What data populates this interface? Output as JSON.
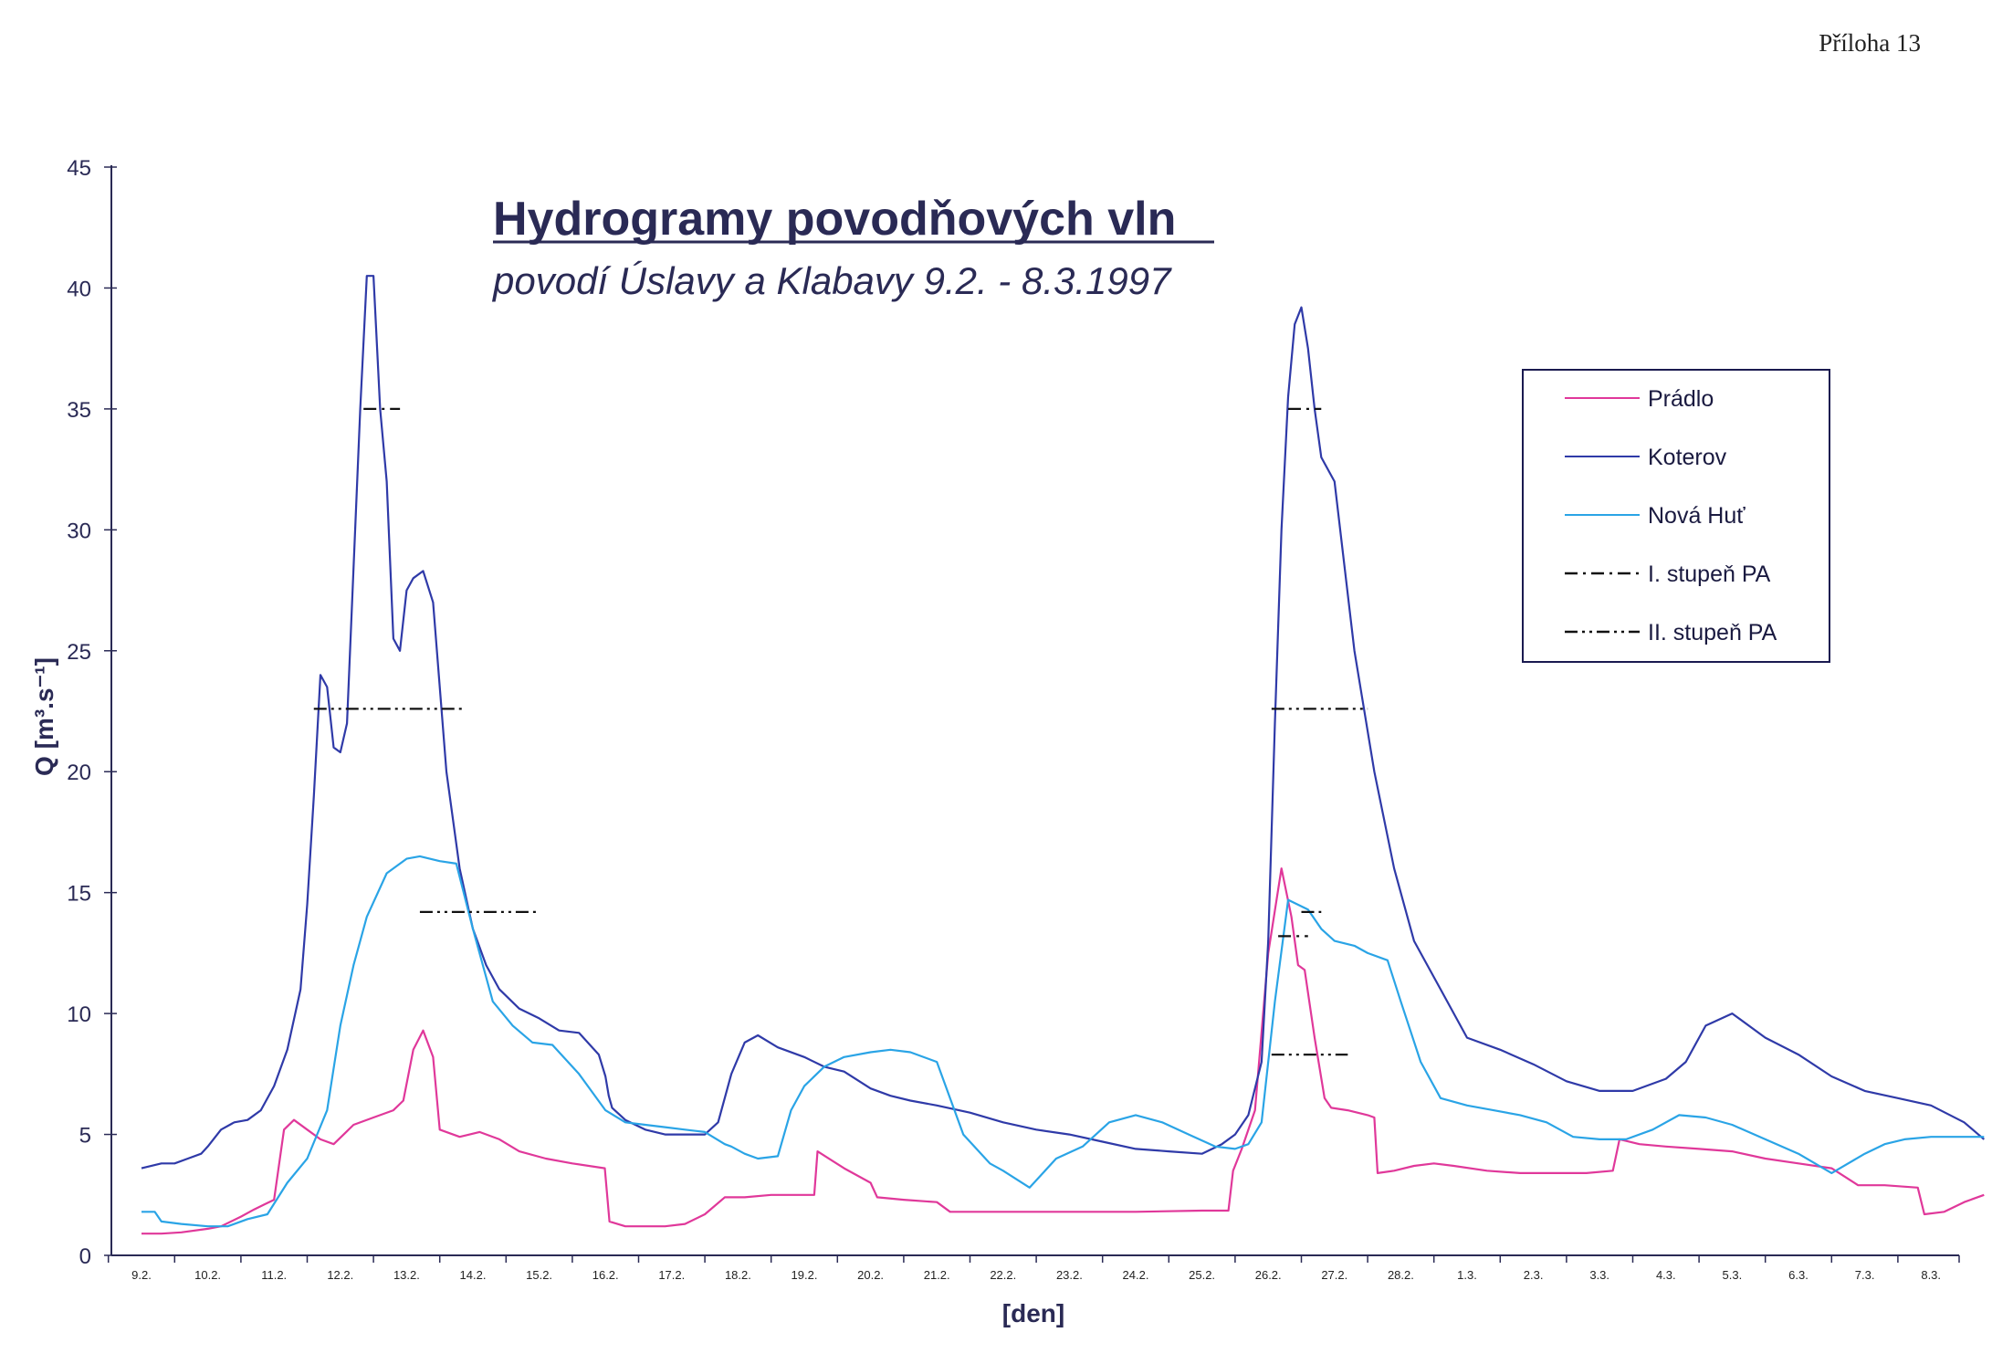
{
  "page": {
    "label": "Příloha 13"
  },
  "chart_data": {
    "type": "line",
    "title": "Hydrogramy povodňových vln",
    "subtitle": "povodí Úslavy a Klabavy  9.2. - 8.3.1997",
    "xlabel": "[den]",
    "ylabel": "Q [m³.s⁻¹]",
    "ylim": [
      0,
      45
    ],
    "yticks": [
      0,
      5,
      10,
      15,
      20,
      25,
      30,
      35,
      40,
      45
    ],
    "categories": [
      "9.2.",
      "10.2.",
      "11.2.",
      "12.2.",
      "13.2.",
      "14.2.",
      "15.2.",
      "16.2.",
      "17.2.",
      "18.2.",
      "19.2.",
      "20.2.",
      "21.2.",
      "22.2.",
      "23.2.",
      "24.2.",
      "25.2.",
      "26.2.",
      "27.2.",
      "28.2.",
      "1.3.",
      "2.3.",
      "3.3.",
      "4.3.",
      "5.3.",
      "6.3.",
      "7.3.",
      "8.3."
    ],
    "grid": false,
    "legend_position": "top-right",
    "series": [
      {
        "name": "Prádlo",
        "color": "#e0389a",
        "x": [
          0,
          0.3,
          0.6,
          1.0,
          1.2,
          1.5,
          1.7,
          1.85,
          2.0,
          2.15,
          2.3,
          2.5,
          2.7,
          2.9,
          3.2,
          3.5,
          3.8,
          3.95,
          4.1,
          4.25,
          4.4,
          4.5,
          4.8,
          5.1,
          5.4,
          5.7,
          6.1,
          6.5,
          6.99,
          7.06,
          7.3,
          7.6,
          7.9,
          8.2,
          8.5,
          8.8,
          9.1,
          9.5,
          10.15,
          10.2,
          10.6,
          11.0,
          11.1,
          11.5,
          12.0,
          12.2,
          12.6,
          13.0,
          14.0,
          15.0,
          16.0,
          16.4,
          16.47,
          16.6,
          16.8,
          17.0,
          17.2,
          17.35,
          17.45,
          17.55,
          17.7,
          17.85,
          17.95,
          18.2,
          18.5,
          18.6,
          18.65,
          18.9,
          19.2,
          19.5,
          19.8,
          20.3,
          20.8,
          21.3,
          21.8,
          22.2,
          22.3,
          22.6,
          23.0,
          23.5,
          24.0,
          24.5,
          25.0,
          25.5,
          25.9,
          25.95,
          26.3,
          26.8,
          26.9,
          27.2,
          27.5,
          27.8
        ],
        "values": [
          0.9,
          0.9,
          0.95,
          1.1,
          1.2,
          1.6,
          1.9,
          2.1,
          2.3,
          5.2,
          5.6,
          5.2,
          4.8,
          4.6,
          5.4,
          5.7,
          6.0,
          6.4,
          8.5,
          9.3,
          8.2,
          5.2,
          4.9,
          5.1,
          4.8,
          4.3,
          4.0,
          3.8,
          3.6,
          1.4,
          1.2,
          1.2,
          1.2,
          1.3,
          1.7,
          2.4,
          2.4,
          2.5,
          2.5,
          4.3,
          3.6,
          3.0,
          2.4,
          2.3,
          2.2,
          1.8,
          1.8,
          1.8,
          1.8,
          1.8,
          1.85,
          1.85,
          3.5,
          4.4,
          6.0,
          12.5,
          16.0,
          14.0,
          12.0,
          11.8,
          9.0,
          6.5,
          6.1,
          6.0,
          5.8,
          5.7,
          3.4,
          3.5,
          3.7,
          3.8,
          3.7,
          3.5,
          3.4,
          3.4,
          3.4,
          3.5,
          4.8,
          4.6,
          4.5,
          4.4,
          4.3,
          4.0,
          3.8,
          3.6,
          2.9,
          2.9,
          2.9,
          2.8,
          1.7,
          1.8,
          2.2,
          2.5
        ]
      },
      {
        "name": "Koterov",
        "color": "#2f3aa8",
        "x": [
          0,
          0.3,
          0.5,
          0.7,
          0.9,
          1.0,
          1.2,
          1.4,
          1.6,
          1.8,
          2.0,
          2.2,
          2.4,
          2.5,
          2.6,
          2.7,
          2.8,
          2.9,
          3.0,
          3.1,
          3.3,
          3.4,
          3.5,
          3.6,
          3.7,
          3.8,
          3.9,
          4.0,
          4.1,
          4.25,
          4.4,
          4.6,
          4.8,
          5.0,
          5.2,
          5.4,
          5.7,
          6.0,
          6.3,
          6.6,
          6.9,
          7.0,
          7.05,
          7.1,
          7.3,
          7.6,
          7.9,
          8.2,
          8.5,
          8.7,
          8.9,
          9.1,
          9.3,
          9.6,
          10.0,
          10.3,
          10.6,
          11.0,
          11.3,
          11.6,
          12.0,
          12.5,
          13.0,
          13.5,
          14.0,
          14.5,
          15.0,
          15.5,
          16.0,
          16.3,
          16.5,
          16.7,
          16.9,
          17.0,
          17.1,
          17.2,
          17.3,
          17.4,
          17.5,
          17.6,
          17.7,
          17.8,
          18.0,
          18.3,
          18.6,
          18.9,
          19.2,
          19.6,
          20.0,
          20.5,
          21.0,
          21.5,
          22.0,
          22.5,
          23.0,
          23.3,
          23.6,
          24.0,
          24.5,
          25.0,
          25.5,
          26.0,
          26.5,
          27.0,
          27.5,
          27.8
        ],
        "values": [
          3.6,
          3.8,
          3.8,
          4.0,
          4.2,
          4.5,
          5.2,
          5.5,
          5.6,
          6.0,
          7.0,
          8.5,
          11.0,
          14.5,
          19.0,
          24.0,
          23.5,
          21.0,
          20.8,
          22.0,
          35.0,
          40.5,
          40.5,
          35.0,
          32.0,
          25.5,
          25.0,
          27.5,
          28.0,
          28.3,
          27.0,
          20.0,
          16.0,
          13.5,
          12.0,
          11.0,
          10.2,
          9.8,
          9.3,
          9.2,
          8.3,
          7.4,
          6.6,
          6.1,
          5.6,
          5.2,
          5.0,
          5.0,
          5.0,
          5.5,
          7.5,
          8.8,
          9.1,
          8.6,
          8.2,
          7.8,
          7.6,
          6.9,
          6.6,
          6.4,
          6.2,
          5.9,
          5.5,
          5.2,
          5.0,
          4.7,
          4.4,
          4.3,
          4.2,
          4.6,
          5.0,
          5.8,
          8.0,
          13.0,
          22.0,
          30.0,
          35.5,
          38.5,
          39.2,
          37.5,
          35.0,
          33.0,
          32.0,
          25.0,
          20.0,
          16.0,
          13.0,
          11.0,
          9.0,
          8.5,
          7.9,
          7.2,
          6.8,
          6.8,
          7.3,
          8.0,
          9.5,
          10.0,
          9.0,
          8.3,
          7.4,
          6.8,
          6.5,
          6.2,
          5.5,
          4.8
        ]
      },
      {
        "name": "Nová Huť",
        "color": "#2aa4e6",
        "x": [
          0,
          0.2,
          0.3,
          0.6,
          1.0,
          1.3,
          1.6,
          1.9,
          2.2,
          2.5,
          2.8,
          3.0,
          3.2,
          3.4,
          3.7,
          4.0,
          4.2,
          4.5,
          4.75,
          5.0,
          5.3,
          5.6,
          5.9,
          6.2,
          6.6,
          7.0,
          7.3,
          7.6,
          7.9,
          8.2,
          8.5,
          8.8,
          8.9,
          9.1,
          9.3,
          9.6,
          9.8,
          10.0,
          10.3,
          10.6,
          11.0,
          11.3,
          11.6,
          12.0,
          12.4,
          12.8,
          13.0,
          13.4,
          13.8,
          14.2,
          14.6,
          15.0,
          15.4,
          15.8,
          16.2,
          16.5,
          16.7,
          16.9,
          17.1,
          17.3,
          17.6,
          17.8,
          18.0,
          18.3,
          18.5,
          18.8,
          19.0,
          19.3,
          19.6,
          20.0,
          20.4,
          20.8,
          21.2,
          21.6,
          22.0,
          22.4,
          22.8,
          23.2,
          23.6,
          24.0,
          24.5,
          25.0,
          25.5,
          26.0,
          26.3,
          26.6,
          27.0,
          27.5,
          27.8
        ],
        "values": [
          1.8,
          1.8,
          1.4,
          1.3,
          1.2,
          1.2,
          1.5,
          1.7,
          3.0,
          4.0,
          6.0,
          9.5,
          12.0,
          14.0,
          15.8,
          16.4,
          16.5,
          16.3,
          16.2,
          13.5,
          10.5,
          9.5,
          8.8,
          8.7,
          7.5,
          6.0,
          5.5,
          5.4,
          5.3,
          5.2,
          5.1,
          4.6,
          4.5,
          4.2,
          4.0,
          4.1,
          6.0,
          7.0,
          7.8,
          8.2,
          8.4,
          8.5,
          8.4,
          8.0,
          5.0,
          3.8,
          3.5,
          2.8,
          4.0,
          4.5,
          5.5,
          5.8,
          5.5,
          5.0,
          4.5,
          4.4,
          4.6,
          5.5,
          10.5,
          14.7,
          14.3,
          13.5,
          13.0,
          12.8,
          12.5,
          12.2,
          10.5,
          8.0,
          6.5,
          6.2,
          6.0,
          5.8,
          5.5,
          4.9,
          4.8,
          4.8,
          5.2,
          5.8,
          5.7,
          5.4,
          4.8,
          4.2,
          3.4,
          4.2,
          4.6,
          4.8,
          4.9,
          4.9,
          4.9
        ]
      }
    ],
    "reference_lines": [
      {
        "name": "I. stupeň PA",
        "style": "dash-dot",
        "segments": [
          {
            "x": [
              3.35,
              3.9
            ],
            "y": 35
          },
          {
            "x": [
              17.3,
              17.8
            ],
            "y": 35
          },
          {
            "x": [
              17.15,
              17.6
            ],
            "y": 13.2
          }
        ]
      },
      {
        "name": "II. stupeň PA",
        "style": "dash-dot-dot",
        "segments": [
          {
            "x": [
              2.6,
              4.9
            ],
            "y": 22.6
          },
          {
            "x": [
              17.05,
              18.5
            ],
            "y": 22.6
          },
          {
            "x": [
              4.2,
              6.0
            ],
            "y": 14.2
          },
          {
            "x": [
              17.5,
              17.8
            ],
            "y": 14.2
          },
          {
            "x": [
              17.05,
              18.2
            ],
            "y": 8.3
          }
        ]
      }
    ]
  },
  "legend": {
    "items": [
      {
        "label": "Prádlo",
        "color": "#e0389a",
        "style": "solid"
      },
      {
        "label": "Koterov",
        "color": "#2f3aa8",
        "style": "solid"
      },
      {
        "label": "Nová Huť",
        "color": "#2aa4e6",
        "style": "solid"
      },
      {
        "label": "I. stupeň PA",
        "color": "#111111",
        "style": "dash-dot"
      },
      {
        "label": "II. stupeň PA",
        "color": "#111111",
        "style": "dash-dot-dot"
      }
    ]
  }
}
